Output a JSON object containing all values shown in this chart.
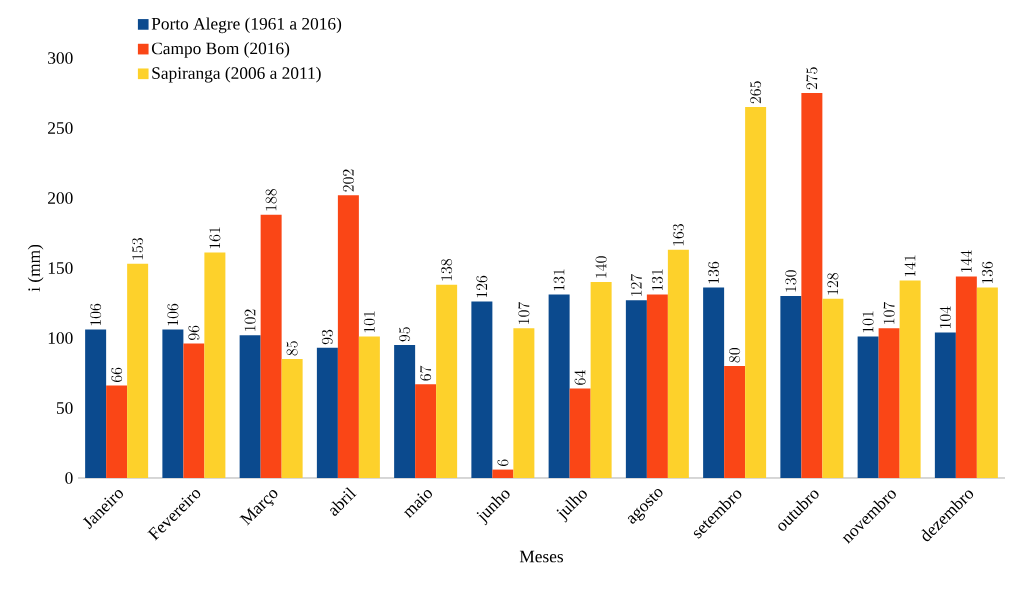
{
  "chart_data": {
    "type": "bar",
    "xlabel": "Meses",
    "ylabel": "i (mm)",
    "categories": [
      "Janeiro",
      "Fevereiro",
      "Março",
      "abril",
      "maio",
      "junho",
      "julho",
      "agosto",
      "setembro",
      "outubro",
      "novembro",
      "dezembro"
    ],
    "series": [
      {
        "name": "Porto Alegre (1961 a 2016)",
        "color": "#0b4a8e",
        "values": [
          106,
          106,
          102,
          93,
          95,
          126,
          131,
          127,
          136,
          130,
          101,
          104
        ]
      },
      {
        "name": "Campo Bom (2016)",
        "color": "#fa4616",
        "values": [
          66,
          96,
          188,
          202,
          67,
          6,
          64,
          131,
          80,
          275,
          107,
          144
        ]
      },
      {
        "name": "Sapiranga (2006 a 2011)",
        "color": "#fdd12b",
        "values": [
          153,
          161,
          85,
          101,
          138,
          107,
          140,
          163,
          265,
          128,
          141,
          136
        ]
      }
    ],
    "ylim": [
      0,
      300
    ],
    "yticks": [
      0,
      50,
      100,
      150,
      200,
      250,
      300
    ],
    "data_labels": true,
    "legend": "top left",
    "grid": false
  }
}
